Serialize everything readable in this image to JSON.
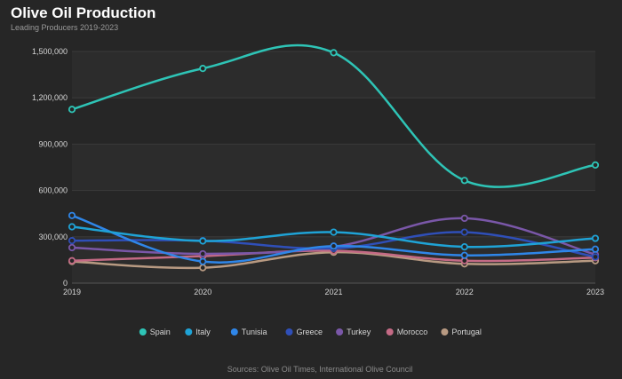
{
  "chart_data": {
    "type": "line",
    "title": "Olive Oil Production",
    "subtitle": "Leading Producers 2019-2023",
    "x": [
      "2019",
      "2020",
      "2021",
      "2022",
      "2023"
    ],
    "ylim": [
      0,
      1500000
    ],
    "yticks": [
      "0",
      "300,000",
      "600,000",
      "900,000",
      "1,200,000",
      "1,500,000"
    ],
    "ytick_values": [
      0,
      300000,
      600000,
      900000,
      1200000,
      1500000
    ],
    "grid": true,
    "legend_position": "bottom-center",
    "series": [
      {
        "name": "Spain",
        "color": "#2ec4b6",
        "values": [
          1125000,
          1390000,
          1492000,
          665000,
          765000
        ]
      },
      {
        "name": "Italy",
        "color": "#1fa3d6",
        "values": [
          365000,
          273000,
          330000,
          235000,
          290000
        ]
      },
      {
        "name": "Tunisia",
        "color": "#2f86e8",
        "values": [
          438000,
          140000,
          240000,
          180000,
          220000
        ]
      },
      {
        "name": "Greece",
        "color": "#2f4fb8",
        "values": [
          275000,
          275000,
          225000,
          330000,
          170000
        ]
      },
      {
        "name": "Turkey",
        "color": "#7a57a8",
        "values": [
          230000,
          190000,
          235000,
          420000,
          185000
        ]
      },
      {
        "name": "Morocco",
        "color": "#c46a85",
        "values": [
          145000,
          175000,
          210000,
          145000,
          165000
        ]
      },
      {
        "name": "Portugal",
        "color": "#b89a82",
        "values": [
          140000,
          100000,
          200000,
          125000,
          145000
        ]
      }
    ]
  },
  "credits": "Sources: Olive Oil Times, International Olive Council"
}
